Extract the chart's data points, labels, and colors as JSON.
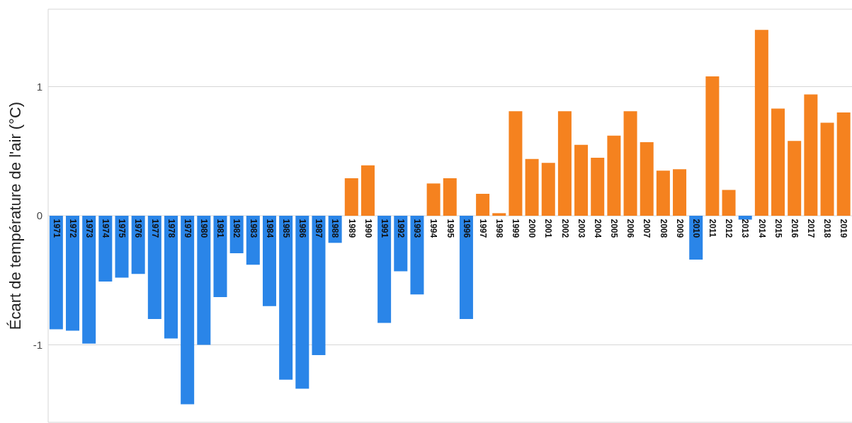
{
  "chart_data": {
    "type": "bar",
    "ylabel": "Écart de température de l'air (°C)",
    "categories": [
      "1971",
      "1972",
      "1973",
      "1974",
      "1975",
      "1976",
      "1977",
      "1978",
      "1979",
      "1980",
      "1981",
      "1982",
      "1983",
      "1984",
      "1985",
      "1986",
      "1987",
      "1988",
      "1989",
      "1990",
      "1991",
      "1992",
      "1993",
      "1994",
      "1995",
      "1996",
      "1997",
      "1998",
      "1999",
      "2000",
      "2001",
      "2002",
      "2003",
      "2004",
      "2005",
      "2006",
      "2007",
      "2008",
      "2009",
      "2010",
      "2011",
      "2012",
      "2013",
      "2014",
      "2015",
      "2016",
      "2017",
      "2018",
      "2019"
    ],
    "values": [
      -0.88,
      -0.89,
      -0.99,
      -0.51,
      -0.48,
      -0.45,
      -0.8,
      -0.95,
      -1.46,
      -1.0,
      -0.63,
      -0.29,
      -0.38,
      -0.7,
      -1.27,
      -1.34,
      -1.08,
      -0.21,
      0.29,
      0.39,
      -0.83,
      -0.43,
      -0.61,
      0.25,
      0.29,
      -0.8,
      0.17,
      0.02,
      0.81,
      0.44,
      0.41,
      0.81,
      0.55,
      0.45,
      0.62,
      0.81,
      0.57,
      0.35,
      0.36,
      -0.34,
      1.08,
      0.2,
      -0.03,
      1.44,
      0.83,
      0.58,
      0.94,
      0.72,
      0.8
    ],
    "colors": [
      "#2a85e8",
      "#2a85e8",
      "#2a85e8",
      "#2a85e8",
      "#2a85e8",
      "#2a85e8",
      "#2a85e8",
      "#2a85e8",
      "#2a85e8",
      "#2a85e8",
      "#2a85e8",
      "#2a85e8",
      "#2a85e8",
      "#2a85e8",
      "#2a85e8",
      "#2a85e8",
      "#2a85e8",
      "#2a85e8",
      "#f5821f",
      "#f5821f",
      "#2a85e8",
      "#2a85e8",
      "#2a85e8",
      "#f5821f",
      "#f5821f",
      "#2a85e8",
      "#f5821f",
      "#f5821f",
      "#f5821f",
      "#f5821f",
      "#f5821f",
      "#f5821f",
      "#f5821f",
      "#f5821f",
      "#f5821f",
      "#f5821f",
      "#f5821f",
      "#f5821f",
      "#f5821f",
      "#2a85e8",
      "#f5821f",
      "#f5821f",
      "#2a85e8",
      "#f5821f",
      "#f5821f",
      "#f5821f",
      "#f5821f",
      "#f5821f",
      "#f5821f"
    ],
    "ylim": [
      -1.6,
      1.6
    ],
    "yticks": [
      -1,
      0,
      1
    ],
    "grid": "y"
  }
}
